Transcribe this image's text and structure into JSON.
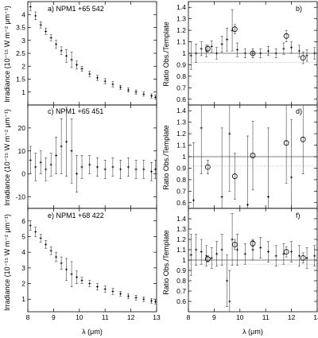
{
  "figure": {
    "x_tick_labels": [
      "8",
      "9",
      "10",
      "11",
      "12",
      "13"
    ],
    "x_label": "λ (μm)"
  },
  "chart_data": [
    {
      "type": "scatter",
      "panel": "a",
      "title": "a) NPM1 +65 542",
      "xlabel": "λ (μm)",
      "ylabel": "Irradiance (10⁻¹⁵ W m⁻² μm⁻¹)",
      "xlim": [
        8,
        13
      ],
      "ylim": [
        0.5,
        4.5
      ],
      "xticks": [
        "8",
        "9",
        "10",
        "11",
        "12",
        "13"
      ],
      "yticks": [
        "1",
        "1.5",
        "2",
        "2.5",
        "3",
        "3.5",
        "4"
      ],
      "series": [
        {
          "x": [
            8.1,
            8.3,
            8.5,
            8.7,
            8.9,
            9.1,
            9.3,
            9.5,
            9.7,
            9.9,
            10.1,
            10.4,
            10.7,
            11.0,
            11.3,
            11.6,
            11.9,
            12.2,
            12.5,
            12.8,
            12.95
          ],
          "y": [
            4.3,
            3.95,
            3.6,
            3.35,
            3.1,
            2.85,
            2.6,
            2.4,
            2.25,
            2.05,
            1.9,
            1.7,
            1.55,
            1.42,
            1.3,
            1.18,
            1.08,
            1.0,
            0.92,
            0.85,
            0.8
          ],
          "yerr": [
            0.15,
            0.15,
            0.12,
            0.12,
            0.12,
            0.15,
            0.15,
            0.25,
            0.3,
            0.15,
            0.1,
            0.1,
            0.1,
            0.1,
            0.1,
            0.08,
            0.08,
            0.08,
            0.08,
            0.08,
            0.08
          ]
        }
      ]
    },
    {
      "type": "scatter",
      "panel": "b",
      "title": "b)",
      "xlabel": "λ (μm)",
      "ylabel": "Ratio Obs./Template",
      "xlim": [
        8,
        13
      ],
      "ylim": [
        0.55,
        1.45
      ],
      "xticks": [
        "8",
        "9",
        "10",
        "11",
        "12",
        "13"
      ],
      "yticks": [
        "0.6",
        "0.7",
        "0.8",
        "0.9",
        "1",
        "1.1",
        "1.2",
        "1.3",
        "1.4"
      ],
      "reference_lines": [
        1.0,
        0.92
      ],
      "series": [
        {
          "name": "data",
          "x": [
            8.1,
            8.3,
            8.5,
            8.7,
            8.9,
            9.1,
            9.3,
            9.5,
            9.7,
            9.9,
            10.2,
            10.5,
            10.8,
            11.1,
            11.4,
            11.7,
            12.0,
            12.3,
            12.6,
            12.9
          ],
          "y": [
            0.98,
            1.0,
            1.04,
            1.02,
            1.06,
            1.0,
            1.08,
            1.12,
            1.2,
            1.03,
            1.0,
            1.0,
            1.0,
            1.02,
            1.0,
            1.04,
            1.05,
            1.02,
            0.98,
            1.0
          ],
          "yerr": [
            0.12,
            0.08,
            0.06,
            0.05,
            0.05,
            0.05,
            0.07,
            0.1,
            0.18,
            0.06,
            0.04,
            0.04,
            0.04,
            0.04,
            0.04,
            0.05,
            0.05,
            0.05,
            0.05,
            0.05
          ]
        },
        {
          "name": "binned",
          "x": [
            8.75,
            9.8,
            10.5,
            11.8,
            12.45
          ],
          "y": [
            1.04,
            1.21,
            1.0,
            1.15,
            0.96
          ],
          "yerr": [
            0.03,
            0.04,
            0.02,
            0.05,
            0.05
          ]
        }
      ]
    },
    {
      "type": "scatter",
      "panel": "c",
      "title": "c) NPM1 +65 451",
      "xlabel": "λ (μm)",
      "ylabel": "Irradiance (10⁻¹⁵ W m⁻² μm⁻¹)",
      "xlim": [
        8,
        13
      ],
      "ylim": [
        -15,
        30
      ],
      "xticks": [
        "8",
        "9",
        "10",
        "11",
        "12",
        "13"
      ],
      "yticks": [
        "-10",
        "0",
        "10",
        "20"
      ],
      "series": [
        {
          "x": [
            8.1,
            8.3,
            8.5,
            8.7,
            8.9,
            9.1,
            9.3,
            9.5,
            9.7,
            9.9,
            10.1,
            10.4,
            10.7,
            11.0,
            11.3,
            11.6,
            11.9,
            12.2,
            12.5,
            12.8,
            12.95
          ],
          "y": [
            6,
            3,
            5,
            2,
            4,
            8,
            12,
            14,
            10,
            0,
            3,
            4,
            3,
            2,
            3,
            2,
            3,
            2,
            2,
            1,
            2
          ],
          "yerr": [
            6,
            6,
            5,
            5,
            5,
            8,
            12,
            15,
            14,
            8,
            5,
            4,
            4,
            4,
            4,
            4,
            4,
            4,
            4,
            4,
            4
          ]
        }
      ]
    },
    {
      "type": "scatter",
      "panel": "d",
      "title": "d)",
      "xlabel": "λ (μm)",
      "ylabel": "Ratio Obs./Template",
      "xlim": [
        8,
        13
      ],
      "ylim": [
        0.55,
        1.45
      ],
      "xticks": [
        "8",
        "9",
        "10",
        "11",
        "12",
        "13"
      ],
      "yticks": [
        "0.6",
        "0.7",
        "0.8",
        "0.9",
        "1",
        "1.1",
        "1.2",
        "1.3",
        "1.4"
      ],
      "reference_lines": [
        1.0,
        0.92
      ],
      "series": [
        {
          "name": "data",
          "x": [
            8.2,
            8.5,
            9.3,
            9.6,
            10.3,
            11.1,
            12.0
          ],
          "y": [
            0.62,
            1.25,
            0.65,
            1.2,
            0.58,
            0.65,
            0.82
          ],
          "yerr": [
            0.5,
            0.4,
            0.6,
            0.5,
            0.6,
            0.6,
            0.5
          ]
        },
        {
          "name": "binned",
          "x": [
            8.75,
            9.8,
            10.5,
            11.8,
            12.45
          ],
          "y": [
            0.91,
            0.83,
            1.01,
            1.12,
            1.15
          ],
          "yerr": [
            0.06,
            0.2,
            0.3,
            0.35,
            0.3
          ]
        }
      ]
    },
    {
      "type": "scatter",
      "panel": "e",
      "title": "e) NPM1 +68 422",
      "xlabel": "λ (μm)",
      "ylabel": "Irradiance (10⁻¹⁵ W m⁻² μm⁻¹)",
      "xlim": [
        8,
        13
      ],
      "ylim": [
        0.2,
        6.8
      ],
      "xticks": [
        "8",
        "9",
        "10",
        "11",
        "12",
        "13"
      ],
      "yticks": [
        "1",
        "2",
        "3",
        "4",
        "5",
        "6"
      ],
      "series": [
        {
          "x": [
            8.1,
            8.3,
            8.5,
            8.7,
            8.9,
            9.1,
            9.3,
            9.5,
            9.7,
            9.9,
            10.1,
            10.4,
            10.7,
            11.0,
            11.3,
            11.6,
            11.9,
            12.2,
            12.5,
            12.8,
            12.95
          ],
          "y": [
            5.7,
            5.3,
            4.9,
            4.5,
            4.1,
            3.7,
            3.3,
            2.9,
            2.6,
            2.4,
            2.2,
            2.0,
            1.8,
            1.65,
            1.5,
            1.35,
            1.2,
            1.1,
            1.0,
            0.9,
            0.85
          ],
          "yerr": [
            0.3,
            0.3,
            0.25,
            0.25,
            0.25,
            0.3,
            0.4,
            0.7,
            0.8,
            0.4,
            0.2,
            0.2,
            0.2,
            0.2,
            0.2,
            0.15,
            0.15,
            0.15,
            0.15,
            0.15,
            0.15
          ]
        }
      ]
    },
    {
      "type": "scatter",
      "panel": "f",
      "title": "f)",
      "xlabel": "λ (μm)",
      "ylabel": "Ratio Obs./Template",
      "xlim": [
        8,
        13
      ],
      "ylim": [
        0.5,
        1.5
      ],
      "xticks": [
        "8",
        "9",
        "10",
        "11",
        "12",
        "13"
      ],
      "yticks": [
        "0.6",
        "0.7",
        "0.8",
        "0.9",
        "1",
        "1.1",
        "1.2",
        "1.3",
        "1.4"
      ],
      "reference_lines": [
        1.0,
        0.96
      ],
      "series": [
        {
          "name": "data",
          "x": [
            8.1,
            8.3,
            8.5,
            8.7,
            8.9,
            9.1,
            9.3,
            9.5,
            9.6,
            9.7,
            9.9,
            10.2,
            10.5,
            10.8,
            11.1,
            11.4,
            11.7,
            12.0,
            12.3,
            12.6,
            12.9
          ],
          "y": [
            1.05,
            1.1,
            1.08,
            1.04,
            1.02,
            1.06,
            1.1,
            0.8,
            0.6,
            1.2,
            1.1,
            1.06,
            1.1,
            1.12,
            1.08,
            1.04,
            1.06,
            1.08,
            1.04,
            1.02,
            1.04
          ],
          "yerr": [
            0.2,
            0.15,
            0.12,
            0.1,
            0.1,
            0.12,
            0.15,
            0.25,
            0.3,
            0.25,
            0.15,
            0.1,
            0.1,
            0.1,
            0.1,
            0.1,
            0.1,
            0.1,
            0.1,
            0.1,
            0.1
          ]
        },
        {
          "name": "binned",
          "x": [
            8.75,
            9.8,
            10.5,
            11.8,
            12.45
          ],
          "y": [
            1.01,
            1.15,
            1.16,
            1.08,
            1.02
          ],
          "yerr": [
            0.03,
            0.05,
            0.03,
            0.05,
            0.05
          ]
        }
      ]
    }
  ]
}
